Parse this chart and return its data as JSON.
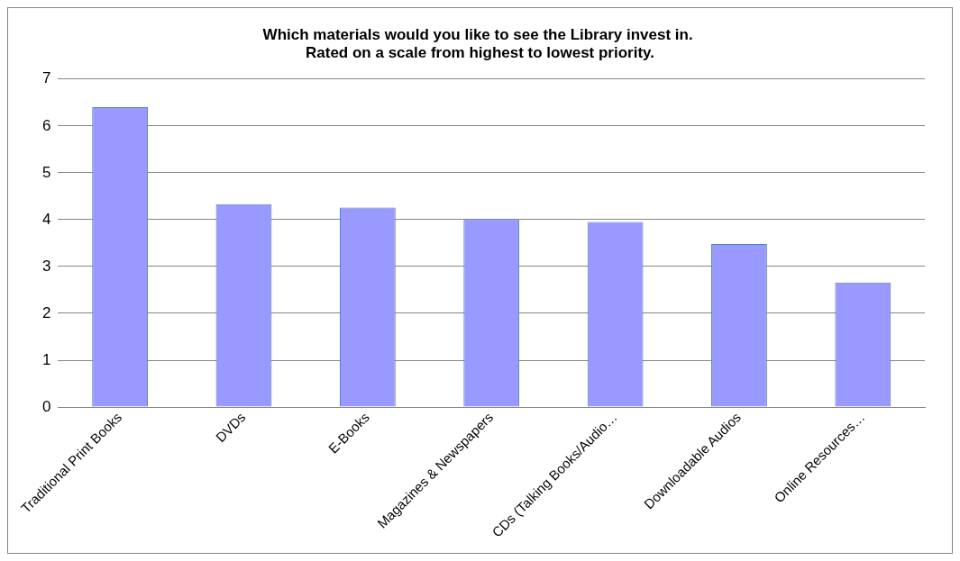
{
  "chart_data": {
    "type": "bar",
    "title": "Which materials would you like to see the Library invest in.  Rated on a scale from highest to lowest priority.",
    "categories": [
      "Traditional Print Books",
      "DVDs",
      "E-Books",
      "Magazines & Newspapers",
      "CDs (Talking Books/Audio…",
      "Downloadable Audios",
      "Online Resources…"
    ],
    "values": [
      6.4,
      4.33,
      4.26,
      4.01,
      3.95,
      3.48,
      2.66
    ],
    "color": "#9999ff",
    "ylim": [
      0,
      7
    ],
    "yticks": [
      0,
      1,
      2,
      3,
      4,
      5,
      6,
      7
    ],
    "grid": "y",
    "legend": false
  }
}
